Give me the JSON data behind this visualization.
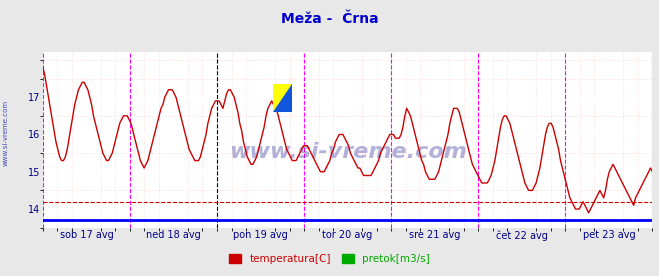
{
  "title": "Meža -  Črna",
  "title_color": "#0000cc",
  "title_fontsize": 10,
  "bg_color": "#e8e8e8",
  "plot_bg_color": "#ffffff",
  "grid_color_minor": "#ffcccc",
  "xlabel_labels": [
    "sob 17 avg",
    "ned 18 avg",
    "pon 19 avg",
    "tor 20 avg",
    "sre 21 avg",
    "čet 22 avg",
    "pet 23 avg"
  ],
  "xlabel_color": "#000088",
  "ylabel_ticks": [
    14,
    15,
    16,
    17
  ],
  "ylabel_color": "#000088",
  "ylim": [
    13.7,
    18.2
  ],
  "xlim": [
    0,
    336
  ],
  "day_ticks_x": [
    0,
    48,
    96,
    144,
    192,
    240,
    288,
    336
  ],
  "black_vline_x": 96,
  "magenta_vlines_x": [
    0,
    48,
    144,
    192,
    240,
    288,
    336
  ],
  "hline_y": 14.2,
  "hline_color": "#cc0000",
  "line_color": "#cc0000",
  "line_width": 1.0,
  "watermark_text": "www.si-vreme.com",
  "watermark_color": "#000088",
  "watermark_alpha": 0.3,
  "side_text": "www.si-vreme.com",
  "side_text_color": "#0000aa",
  "legend_entries": [
    "temperatura[C]",
    "pretok[m3/s]"
  ],
  "legend_colors": [
    "#cc0000",
    "#00aa00"
  ],
  "temp_data": [
    17.8,
    17.6,
    17.3,
    17.0,
    16.7,
    16.4,
    16.1,
    15.8,
    15.6,
    15.4,
    15.3,
    15.3,
    15.4,
    15.6,
    15.9,
    16.2,
    16.5,
    16.8,
    17.0,
    17.2,
    17.3,
    17.4,
    17.4,
    17.3,
    17.2,
    17.0,
    16.8,
    16.5,
    16.3,
    16.1,
    15.9,
    15.7,
    15.5,
    15.4,
    15.3,
    15.3,
    15.4,
    15.5,
    15.7,
    15.9,
    16.1,
    16.3,
    16.4,
    16.5,
    16.5,
    16.5,
    16.4,
    16.3,
    16.1,
    15.9,
    15.7,
    15.5,
    15.3,
    15.2,
    15.1,
    15.2,
    15.3,
    15.5,
    15.7,
    15.9,
    16.1,
    16.3,
    16.5,
    16.7,
    16.8,
    17.0,
    17.1,
    17.2,
    17.2,
    17.2,
    17.1,
    17.0,
    16.8,
    16.6,
    16.4,
    16.2,
    16.0,
    15.8,
    15.6,
    15.5,
    15.4,
    15.3,
    15.3,
    15.3,
    15.4,
    15.6,
    15.8,
    16.0,
    16.3,
    16.5,
    16.7,
    16.8,
    16.9,
    16.9,
    16.9,
    16.8,
    16.7,
    16.9,
    17.1,
    17.2,
    17.2,
    17.1,
    17.0,
    16.8,
    16.6,
    16.3,
    16.1,
    15.8,
    15.6,
    15.4,
    15.3,
    15.2,
    15.2,
    15.3,
    15.4,
    15.6,
    15.8,
    16.0,
    16.2,
    16.5,
    16.7,
    16.8,
    16.9,
    16.8,
    16.7,
    16.6,
    16.4,
    16.2,
    16.0,
    15.8,
    15.6,
    15.5,
    15.4,
    15.3,
    15.3,
    15.3,
    15.4,
    15.5,
    15.6,
    15.7,
    15.7,
    15.7,
    15.6,
    15.5,
    15.4,
    15.3,
    15.2,
    15.1,
    15.0,
    15.0,
    15.0,
    15.1,
    15.2,
    15.3,
    15.5,
    15.6,
    15.8,
    15.9,
    16.0,
    16.0,
    16.0,
    15.9,
    15.8,
    15.7,
    15.5,
    15.4,
    15.3,
    15.2,
    15.1,
    15.1,
    15.0,
    14.9,
    14.9,
    14.9,
    14.9,
    14.9,
    15.0,
    15.1,
    15.2,
    15.3,
    15.5,
    15.6,
    15.7,
    15.8,
    15.9,
    16.0,
    16.0,
    16.0,
    15.9,
    15.9,
    15.9,
    16.0,
    16.2,
    16.5,
    16.7,
    16.6,
    16.5,
    16.3,
    16.1,
    15.9,
    15.7,
    15.5,
    15.3,
    15.2,
    15.0,
    14.9,
    14.8,
    14.8,
    14.8,
    14.8,
    14.9,
    15.0,
    15.2,
    15.4,
    15.6,
    15.8,
    16.0,
    16.3,
    16.5,
    16.7,
    16.7,
    16.7,
    16.6,
    16.4,
    16.2,
    16.0,
    15.8,
    15.6,
    15.4,
    15.2,
    15.1,
    15.0,
    14.9,
    14.8,
    14.7,
    14.7,
    14.7,
    14.7,
    14.8,
    14.9,
    15.1,
    15.3,
    15.6,
    15.9,
    16.2,
    16.4,
    16.5,
    16.5,
    16.4,
    16.3,
    16.1,
    15.9,
    15.7,
    15.5,
    15.3,
    15.1,
    14.9,
    14.7,
    14.6,
    14.5,
    14.5,
    14.5,
    14.6,
    14.7,
    14.9,
    15.1,
    15.4,
    15.7,
    16.0,
    16.2,
    16.3,
    16.3,
    16.2,
    16.0,
    15.8,
    15.6,
    15.3,
    15.1,
    14.9,
    14.7,
    14.5,
    14.3,
    14.2,
    14.1,
    14.0,
    14.0,
    14.0,
    14.1,
    14.2,
    14.1,
    14.0,
    13.9,
    14.0,
    14.1,
    14.2,
    14.3,
    14.4,
    14.5,
    14.4,
    14.3,
    14.5,
    14.8,
    15.0,
    15.1,
    15.2,
    15.1,
    15.0,
    14.9,
    14.8,
    14.7,
    14.6,
    14.5,
    14.4,
    14.3,
    14.2,
    14.1,
    14.3,
    14.4,
    14.5,
    14.6,
    14.7,
    14.8,
    14.9,
    15.0,
    15.1,
    15.0
  ]
}
